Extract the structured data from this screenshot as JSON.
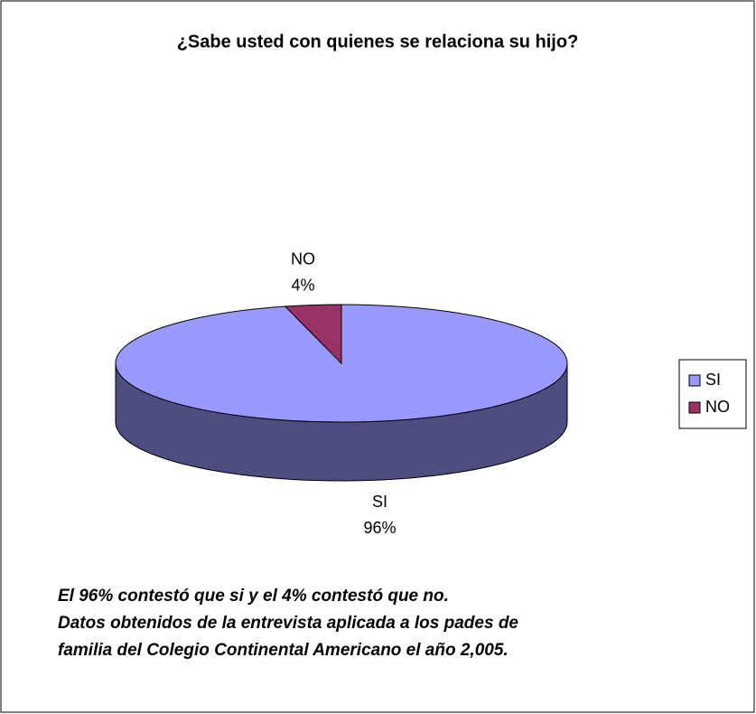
{
  "chart_data": {
    "type": "pie3d",
    "title": "¿Sabe usted con quienes  se relaciona su hijo?",
    "categories": [
      "SI",
      "NO"
    ],
    "values": [
      96,
      4
    ],
    "value_labels": [
      "96%",
      "4%"
    ],
    "colors": [
      "#9999ff",
      "#993366"
    ],
    "side_colors": [
      "#4d4d80",
      "#4d1a33"
    ],
    "legend": "right",
    "annotations": [
      "El 96% contestó que si y el 4% contestó que no.",
      "Datos obtenidos de la entrevista aplicada a los pades de",
      "familia del Colegio Continental Americano el año 2,005."
    ]
  }
}
